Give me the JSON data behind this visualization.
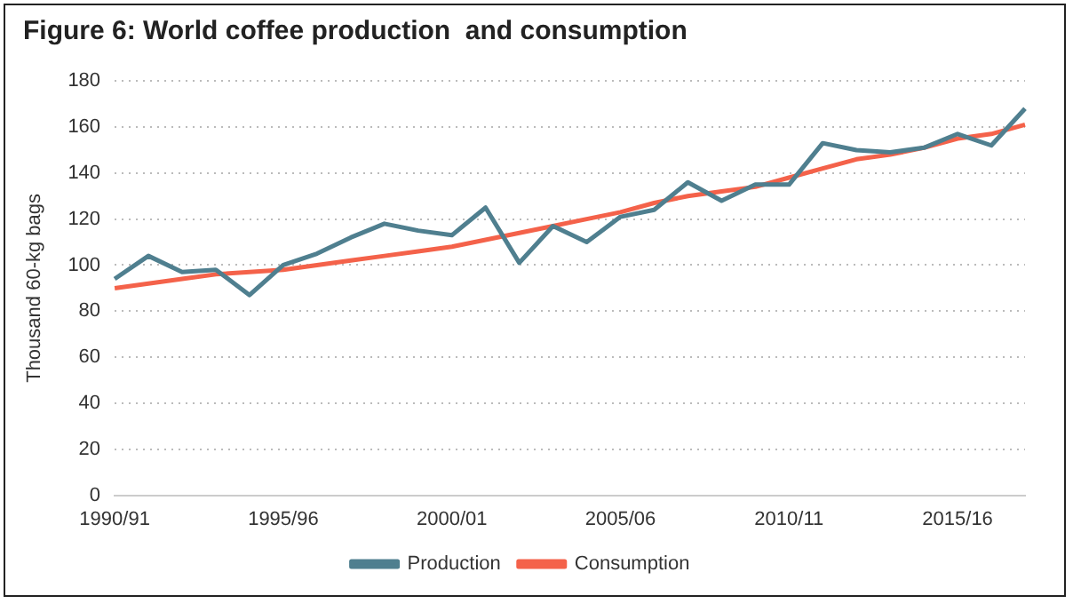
{
  "chart_data": {
    "type": "line",
    "title": "Figure 6: World coffee production  and consumption",
    "ylabel": "Thousand 60-kg bags",
    "categories": [
      "1990/91",
      null,
      null,
      null,
      null,
      "1995/96",
      null,
      null,
      null,
      null,
      "2000/01",
      null,
      null,
      null,
      null,
      "2005/06",
      null,
      null,
      null,
      null,
      "2010/11",
      null,
      null,
      null,
      null,
      "2015/16",
      null,
      null
    ],
    "series": [
      {
        "name": "Production",
        "color": "#4f7f8f",
        "values": [
          94,
          104,
          97,
          98,
          87,
          100,
          105,
          112,
          118,
          115,
          113,
          125,
          101,
          117,
          110,
          121,
          124,
          136,
          128,
          135,
          135,
          153,
          150,
          149,
          151,
          157,
          152,
          168
        ]
      },
      {
        "name": "Consumption",
        "color": "#f4624a",
        "values": [
          90,
          92,
          94,
          96,
          97,
          98,
          100,
          102,
          104,
          106,
          108,
          111,
          114,
          117,
          120,
          123,
          127,
          130,
          132,
          134,
          138,
          142,
          146,
          148,
          151,
          155,
          157,
          161
        ]
      }
    ],
    "ylim": [
      0,
      180
    ],
    "yticks": [
      0,
      20,
      40,
      60,
      80,
      100,
      120,
      140,
      160,
      180
    ],
    "grid": "y",
    "legend": "bottom",
    "marker": "none",
    "line_style": "solid"
  }
}
